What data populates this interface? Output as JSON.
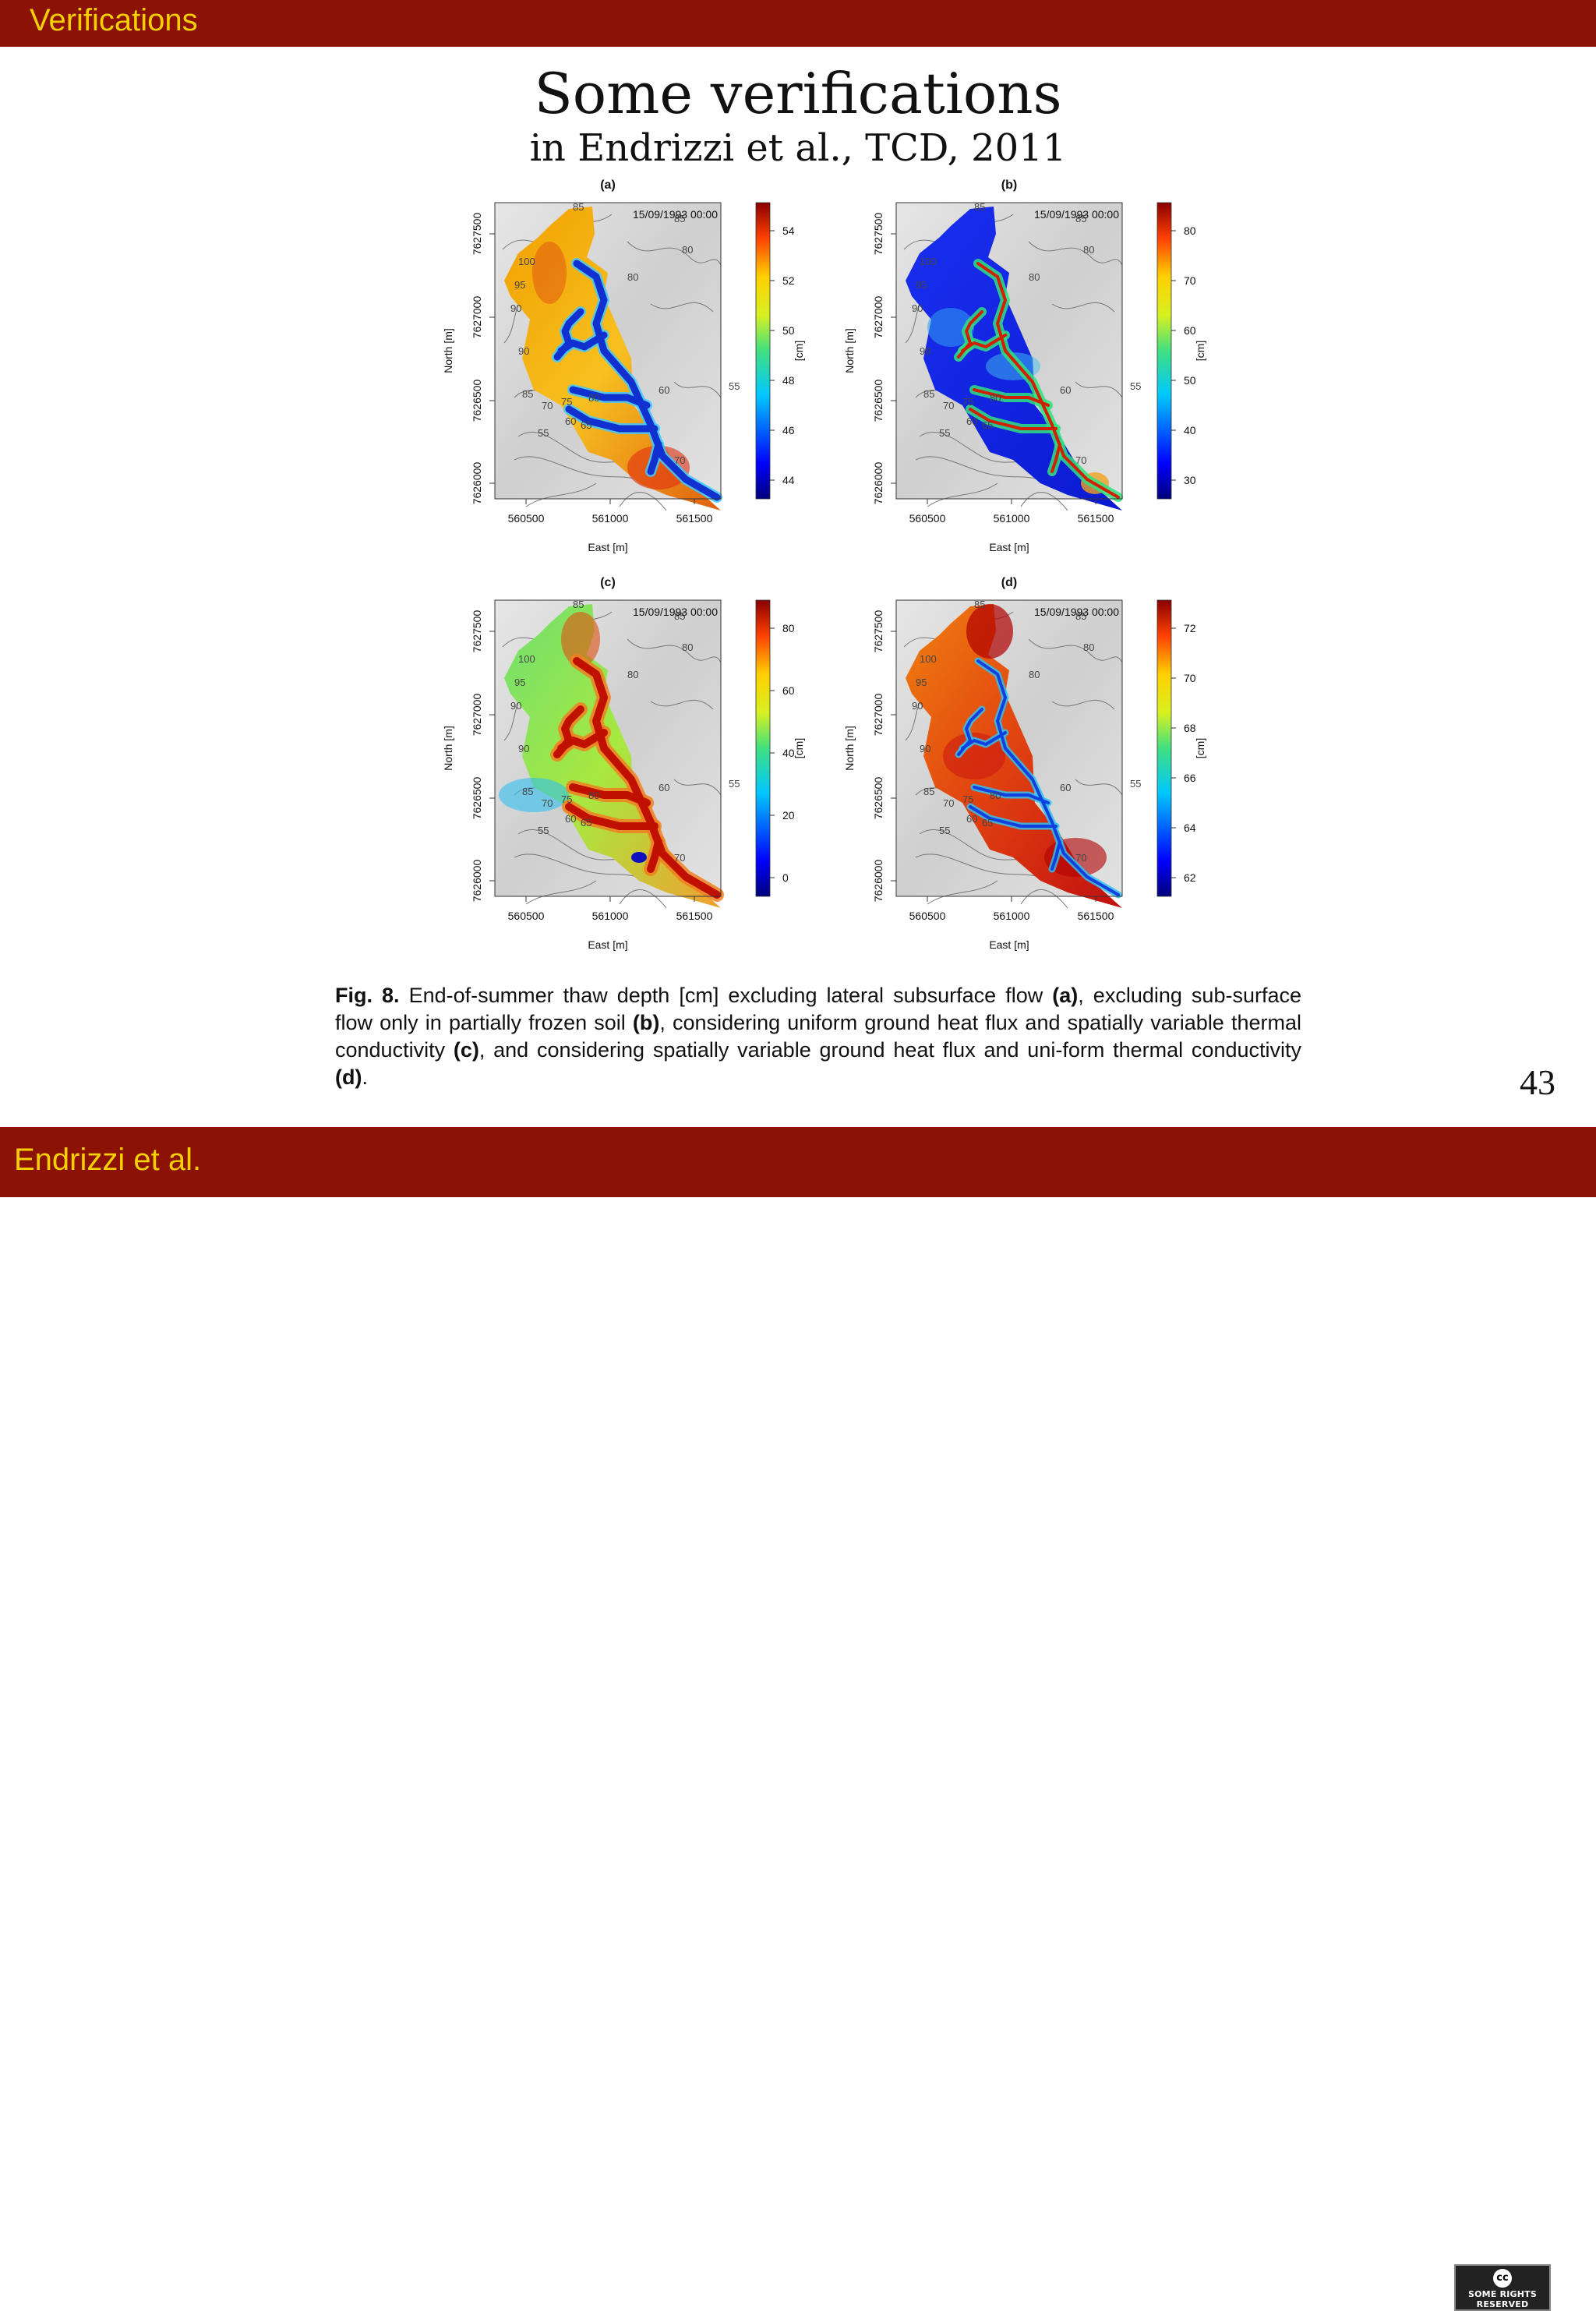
{
  "header": {
    "section_label": "Verifications"
  },
  "footer": {
    "author_label": "Endrizzi et al.",
    "license_badge": "SOME RIGHTS RESERVED",
    "license_icon": "cc"
  },
  "slide": {
    "title": "Some verifications",
    "subtitle": "in Endrizzi et al., TCD, 2011",
    "page_number": "43"
  },
  "figure": {
    "panels": [
      {
        "id": "a",
        "label": "(a)",
        "timestamp": "15/09/1993 00:00",
        "colorbar_ticks": [
          "54",
          "52",
          "50",
          "48",
          "46",
          "44"
        ],
        "colorbar_unit": "[cm]",
        "map_style": "a"
      },
      {
        "id": "b",
        "label": "(b)",
        "timestamp": "15/09/1993 00:00",
        "colorbar_ticks": [
          "80",
          "70",
          "60",
          "50",
          "40",
          "30"
        ],
        "colorbar_unit": "[cm]",
        "map_style": "b"
      },
      {
        "id": "c",
        "label": "(c)",
        "timestamp": "15/09/1993 00:00",
        "colorbar_ticks": [
          "80",
          "60",
          "40",
          "20",
          "0"
        ],
        "colorbar_unit": "[cm]",
        "map_style": "c"
      },
      {
        "id": "d",
        "label": "(d)",
        "timestamp": "15/09/1993 00:00",
        "colorbar_ticks": [
          "72",
          "70",
          "68",
          "66",
          "64",
          "62"
        ],
        "colorbar_unit": "[cm]",
        "map_style": "d"
      }
    ],
    "x_ticks": [
      "560500",
      "561000",
      "561500"
    ],
    "y_ticks": [
      "7627500",
      "7627000",
      "7626500",
      "7626000"
    ],
    "xlabel": "East [m]",
    "ylabel": "North [m]",
    "contour_labels": [
      "85",
      "85",
      "80",
      "80",
      "100",
      "95",
      "90",
      "90",
      "85",
      "75",
      "80",
      "70",
      "60",
      "65",
      "55",
      "55",
      "60",
      "70"
    ]
  },
  "caption": {
    "fig_label": "Fig. 8.",
    "t1": " End-of-summer thaw depth [cm] excluding lateral subsurface flow ",
    "b1": "(a)",
    "t2": ", excluding sub-surface flow only in partially frozen soil ",
    "b2": "(b)",
    "t3": ", considering uniform ground heat flux and spatially variable thermal conductivity ",
    "b3": "(c)",
    "t4": ", and considering spatially variable ground heat flux and uni-form thermal conductivity ",
    "b4": "(d)",
    "t5": "."
  }
}
